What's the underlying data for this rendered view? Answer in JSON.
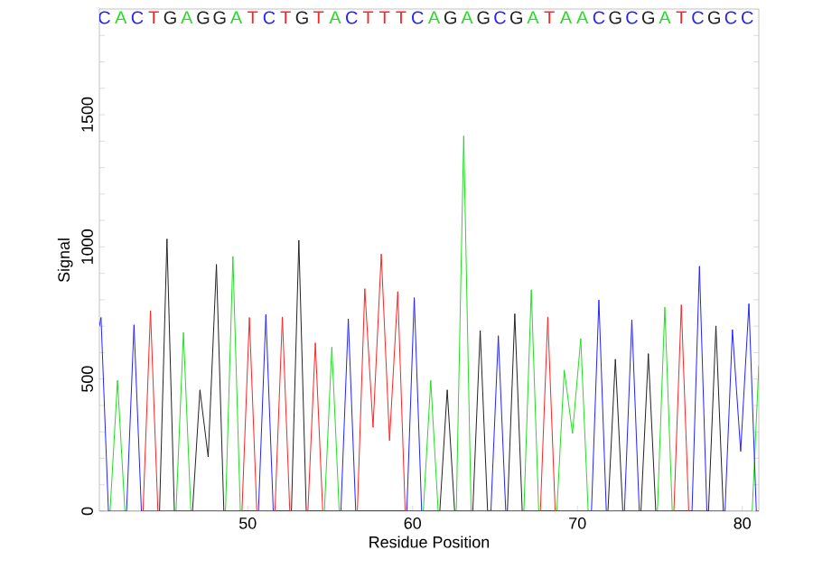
{
  "chart_data": {
    "type": "line",
    "xlabel": "Residue Position",
    "ylabel": "Signal",
    "xlim": [
      41,
      81
    ],
    "ylim": [
      0,
      1900
    ],
    "xticks": [
      50,
      60,
      70,
      80
    ],
    "yticks": [
      0,
      {
        "value": 100,
        "label": null
      },
      {
        "value": 200,
        "label": null
      },
      {
        "value": 300,
        "label": null
      },
      {
        "value": 400,
        "label": null
      },
      500,
      {
        "value": 600,
        "label": null
      },
      {
        "value": 700,
        "label": null
      },
      {
        "value": 800,
        "label": null
      },
      {
        "value": 900,
        "label": null
      },
      1000,
      {
        "value": 1100,
        "label": null
      },
      {
        "value": 1200,
        "label": null
      },
      {
        "value": 1300,
        "label": null
      },
      {
        "value": 1400,
        "label": null
      },
      1500,
      {
        "value": 1600,
        "label": null
      },
      {
        "value": 1700,
        "label": null
      },
      {
        "value": 1800,
        "label": null
      }
    ],
    "annotations": [
      "C",
      "A",
      "C",
      "T",
      "G",
      "A",
      "G",
      "G",
      "A",
      "T",
      "C",
      "T",
      "G",
      "T",
      "A",
      "C",
      "T",
      "T",
      "T",
      "C",
      "A",
      "G",
      "A",
      "G",
      "C",
      "G",
      "A",
      "T",
      "A",
      "A",
      "C",
      "G",
      "C",
      "G",
      "A",
      "T",
      "C",
      "G",
      "C",
      "C"
    ],
    "line_style": "solid",
    "series": [
      {
        "color": "#22dd22",
        "x": [
          41,
          41.65,
          42.1,
          42.55,
          45.65,
          46.1,
          46.55,
          48.65,
          49.1,
          49.55,
          54.65,
          55.1,
          55.55,
          60.65,
          61.1,
          61.55,
          62.65,
          63.1,
          63.55,
          66.75,
          67.2,
          67.65,
          68.75,
          69.2,
          69.7,
          70.2,
          70.65,
          74.85,
          75.3,
          75.75,
          80.6,
          81
        ],
        "values": [
          0,
          0,
          495,
          0,
          0,
          676,
          0,
          0,
          964,
          0,
          0,
          621,
          0,
          0,
          495,
          0,
          0,
          1420,
          0,
          0,
          838,
          0,
          0,
          534,
          294,
          653,
          0,
          0,
          772,
          0,
          0,
          550
        ]
      },
      {
        "color": "#2222ff",
        "x": [
          41,
          41.1,
          41.55,
          42.65,
          43.1,
          43.55,
          50.65,
          51.1,
          51.55,
          55.65,
          56.1,
          56.55,
          59.65,
          60.1,
          60.55,
          64.75,
          65.2,
          65.65,
          70.85,
          71.3,
          71.75,
          72.85,
          73.3,
          73.75,
          76.95,
          77.4,
          77.85,
          78.95,
          79.4,
          79.9,
          80.4,
          80.85,
          81
        ],
        "values": [
          700,
          733,
          0,
          0,
          705,
          0,
          0,
          744,
          0,
          0,
          728,
          0,
          0,
          808,
          0,
          0,
          664,
          0,
          0,
          799,
          0,
          0,
          724,
          0,
          0,
          927,
          0,
          0,
          687,
          226,
          785,
          0,
          0
        ]
      },
      {
        "color": "#222222",
        "x": [
          44.65,
          45.1,
          45.55,
          46.65,
          47.1,
          47.6,
          48.1,
          48.55,
          52.65,
          53.1,
          53.55,
          61.65,
          62.1,
          62.55,
          63.65,
          64.1,
          64.55,
          65.75,
          66.2,
          66.65,
          71.85,
          72.3,
          72.75,
          73.85,
          74.3,
          74.75,
          77.95,
          78.4,
          78.85
        ],
        "values": [
          0,
          1030,
          0,
          0,
          459,
          205,
          934,
          0,
          0,
          1025,
          0,
          0,
          459,
          0,
          0,
          683,
          0,
          0,
          747,
          0,
          0,
          575,
          0,
          0,
          596,
          0,
          0,
          701,
          0
        ]
      },
      {
        "color": "#ff2222",
        "x": [
          43.65,
          44.1,
          44.55,
          49.65,
          50.1,
          50.55,
          51.65,
          52.1,
          52.55,
          53.65,
          54.1,
          54.55,
          56.65,
          57.1,
          57.6,
          58.1,
          58.6,
          59.1,
          59.55,
          67.75,
          68.2,
          68.65,
          75.85,
          76.3,
          76.75
        ],
        "values": [
          0,
          758,
          0,
          0,
          733,
          0,
          0,
          735,
          0,
          0,
          637,
          0,
          0,
          842,
          317,
          973,
          267,
          831,
          0,
          0,
          735,
          0,
          0,
          781,
          0
        ]
      }
    ]
  }
}
